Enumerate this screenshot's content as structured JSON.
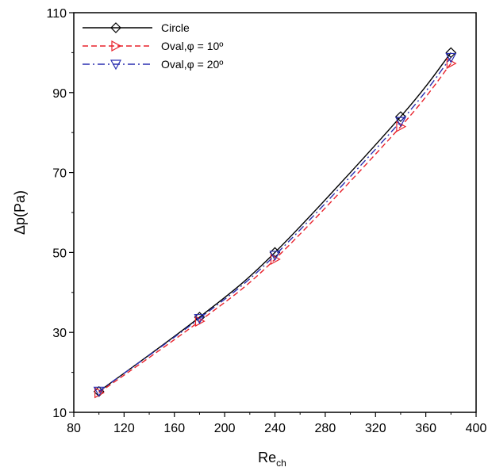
{
  "chart_data": {
    "type": "line",
    "title": "",
    "xlabel_main": "Re",
    "xlabel_sub": "ch",
    "ylabel": "Δp(Pa)",
    "xlim": [
      80,
      400
    ],
    "ylim": [
      10,
      110
    ],
    "xticks": [
      80,
      120,
      160,
      200,
      240,
      280,
      320,
      360,
      400
    ],
    "yticks": [
      10,
      30,
      50,
      70,
      90,
      110
    ],
    "grid": false,
    "legend_position": "top-left",
    "series": [
      {
        "name": "Circle",
        "color": "#000000",
        "dash": "solid",
        "marker": "diamond",
        "x": [
          100,
          180,
          240,
          340,
          380
        ],
        "y": [
          15.2,
          33.8,
          50.0,
          84.0,
          100.0
        ]
      },
      {
        "name": "Oval,φ = 10º",
        "color": "#e8212a",
        "dash": "dashed",
        "marker": "triangle-right",
        "x": [
          100,
          180,
          240,
          340,
          380
        ],
        "y": [
          14.9,
          32.8,
          48.3,
          81.5,
          97.3
        ]
      },
      {
        "name": "Oval,φ = 20º",
        "color": "#2a2fb0",
        "dash": "dashdot",
        "marker": "triangle-down",
        "x": [
          100,
          180,
          240,
          340,
          380
        ],
        "y": [
          15.3,
          33.5,
          49.3,
          82.8,
          98.8
        ]
      }
    ]
  }
}
